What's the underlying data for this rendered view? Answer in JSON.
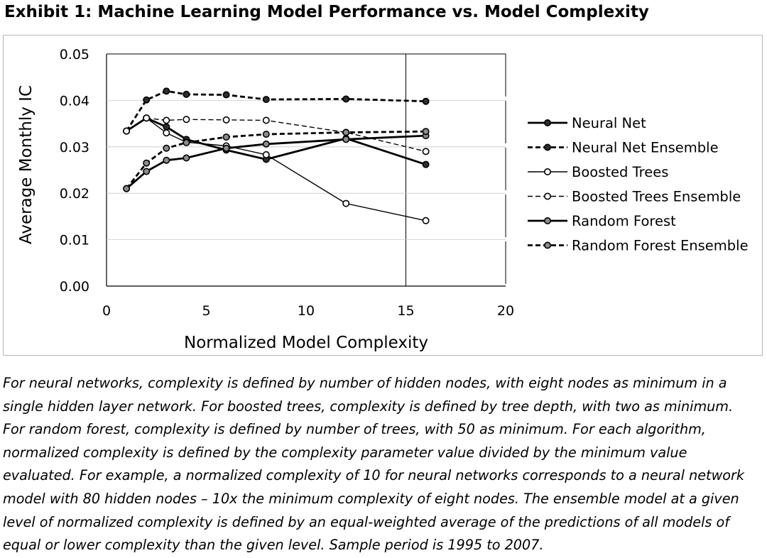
{
  "title": "Exhibit 1: Machine Learning Model Performance vs. Model Complexity",
  "chart_data": {
    "type": "line",
    "title": "",
    "xlabel": "Normalized Model Complexity",
    "ylabel": "Average Monthly IC",
    "xlim": [
      0,
      20
    ],
    "ylim": [
      0,
      0.05
    ],
    "x_ticks": [
      "0",
      "5",
      "10",
      "15",
      "20"
    ],
    "y_ticks": [
      "0.00",
      "0.01",
      "0.02",
      "0.03",
      "0.04",
      "0.05"
    ],
    "grid": "partial",
    "legend_position": "right",
    "series": [
      {
        "name": "Neural Net",
        "style": "solid",
        "marker": "circle-dark",
        "weight": "bold",
        "x": [
          1,
          2,
          3,
          4,
          6,
          8,
          12,
          16
        ],
        "y": [
          0.0334,
          0.0362,
          0.0343,
          0.0316,
          0.0293,
          0.0273,
          0.0318,
          0.0262
        ]
      },
      {
        "name": "Neural Net Ensemble",
        "style": "dashed",
        "marker": "circle-dark",
        "weight": "bold",
        "x": [
          1,
          2,
          3,
          4,
          6,
          8,
          12,
          16
        ],
        "y": [
          0.0334,
          0.0401,
          0.042,
          0.0413,
          0.0412,
          0.0402,
          0.0403,
          0.0398
        ]
      },
      {
        "name": "Boosted Trees",
        "style": "solid",
        "marker": "circle-white",
        "weight": "thin",
        "x": [
          1,
          2,
          3,
          4,
          6,
          8,
          12,
          16
        ],
        "y": [
          0.0334,
          0.0362,
          0.033,
          0.031,
          0.0302,
          0.0283,
          0.0178,
          0.0141
        ]
      },
      {
        "name": "Boosted Trees Ensemble",
        "style": "dashed",
        "marker": "circle-white",
        "weight": "thin",
        "x": [
          1,
          2,
          3,
          4,
          6,
          8,
          12,
          16
        ],
        "y": [
          0.0334,
          0.0362,
          0.0357,
          0.0359,
          0.0358,
          0.0357,
          0.0331,
          0.029
        ]
      },
      {
        "name": "Random Forest",
        "style": "solid",
        "marker": "circle-gray",
        "weight": "bold",
        "x": [
          1,
          2,
          3,
          4,
          6,
          8,
          12,
          16
        ],
        "y": [
          0.021,
          0.0247,
          0.0271,
          0.0276,
          0.0297,
          0.0306,
          0.0316,
          0.0324
        ]
      },
      {
        "name": "Random Forest Ensemble",
        "style": "dashed",
        "marker": "circle-gray",
        "weight": "bold",
        "x": [
          1,
          2,
          3,
          4,
          6,
          8,
          12,
          16
        ],
        "y": [
          0.021,
          0.0265,
          0.0297,
          0.0309,
          0.0321,
          0.0327,
          0.0331,
          0.0333
        ]
      }
    ]
  },
  "footnote": [
    "For neural networks, complexity is defined by number of hidden nodes, with eight nodes as minimum in a",
    "single hidden layer network. For boosted trees, complexity is defined by tree depth, with two as minimum.",
    "For random forest, complexity is defined by number of trees, with 50 as minimum. For each algorithm,",
    "normalized complexity is defined by the complexity parameter value divided by the minimum value",
    "evaluated. For example, a normalized complexity of 10 for neural networks corresponds to a neural network",
    "model with 80 hidden nodes – 10x the minimum complexity of eight nodes. The ensemble model at a given",
    "level of normalized complexity is defined by an equal-weighted average of the predictions of all models of",
    "equal or lower complexity than the given level. Sample period is 1995 to 2007."
  ]
}
